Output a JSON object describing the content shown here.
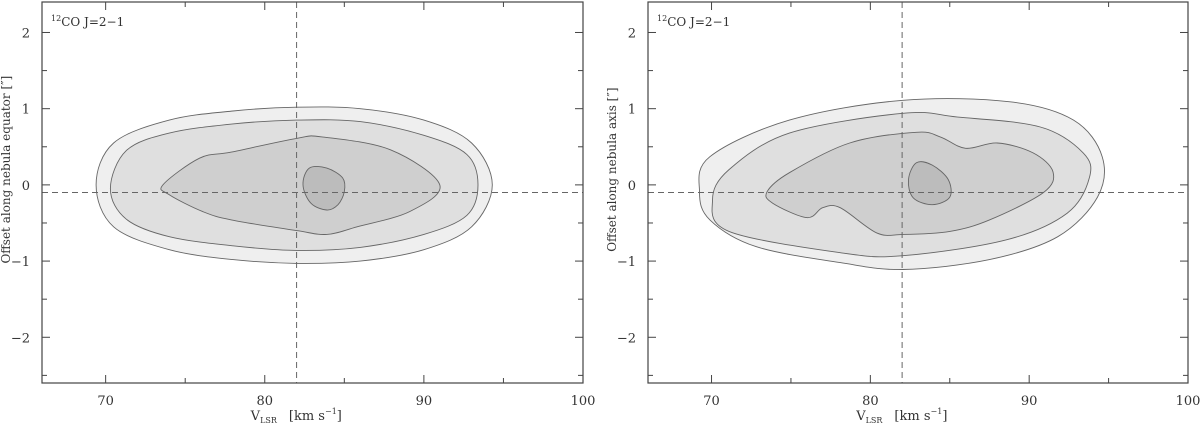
{
  "chart_data": [
    {
      "type": "contour",
      "annotation": {
        "sup": "12",
        "text": "CO J=2−1"
      },
      "xlabel": {
        "main": "V",
        "sub": "LSR",
        "unit": "[km s",
        "unit_sup": "−1",
        "unit_end": "]"
      },
      "ylabel": "Offset along nebula equator [″]",
      "xlim": [
        66,
        100
      ],
      "ylim": [
        -2.6,
        2.4
      ],
      "x_ticks": [
        70,
        80,
        90,
        100
      ],
      "x_tick_labels": [
        "70",
        "80",
        "90",
        "100"
      ],
      "x_minor_ticks": [
        75,
        85,
        95
      ],
      "y_ticks": [
        -2,
        -1,
        0,
        1,
        2
      ],
      "y_tick_labels": [
        "−2",
        "−1",
        "0",
        "1",
        "2"
      ],
      "y_minor_ticks": [
        -2.5,
        -1.5,
        -0.5,
        0.5,
        1.5
      ],
      "reference_lines": {
        "x": 82,
        "y": -0.1
      },
      "grid": false,
      "level_colors": [
        "#efefef",
        "#dfdfdf",
        "#cfcfcf",
        "#bcbcbc"
      ],
      "contours": [
        [
          [
            69.4,
            0
          ],
          [
            70.5,
            0.55
          ],
          [
            74,
            0.85
          ],
          [
            78,
            0.97
          ],
          [
            82,
            1.02
          ],
          [
            86,
            1.0
          ],
          [
            90,
            0.85
          ],
          [
            93,
            0.55
          ],
          [
            94.3,
            0
          ],
          [
            93,
            -0.55
          ],
          [
            90,
            -0.85
          ],
          [
            86,
            -1.0
          ],
          [
            82,
            -1.03
          ],
          [
            78,
            -0.98
          ],
          [
            74,
            -0.85
          ],
          [
            70.5,
            -0.55
          ]
        ],
        [
          [
            70.3,
            -0.05
          ],
          [
            71.3,
            0.45
          ],
          [
            74,
            0.68
          ],
          [
            78,
            0.8
          ],
          [
            82,
            0.85
          ],
          [
            86,
            0.83
          ],
          [
            90,
            0.65
          ],
          [
            92.7,
            0.4
          ],
          [
            93.4,
            0
          ],
          [
            92.7,
            -0.4
          ],
          [
            90,
            -0.65
          ],
          [
            86,
            -0.82
          ],
          [
            82,
            -0.86
          ],
          [
            78,
            -0.8
          ],
          [
            74,
            -0.68
          ],
          [
            71.3,
            -0.45
          ]
        ],
        [
          [
            73.6,
            0
          ],
          [
            75.9,
            0.35
          ],
          [
            77.9,
            0.43
          ],
          [
            82,
            0.61
          ],
          [
            83.6,
            0.63
          ],
          [
            87.9,
            0.46
          ],
          [
            91,
            0
          ],
          [
            89.1,
            -0.35
          ],
          [
            85.8,
            -0.55
          ],
          [
            83.9,
            -0.65
          ],
          [
            82,
            -0.6
          ],
          [
            77.9,
            -0.46
          ],
          [
            76.1,
            -0.35
          ],
          [
            74,
            -0.13
          ]
        ],
        [
          [
            82.8,
            0.22
          ],
          [
            83.9,
            0.22
          ],
          [
            84.9,
            0.09
          ],
          [
            85,
            -0.09
          ],
          [
            84.6,
            -0.26
          ],
          [
            83.9,
            -0.33
          ],
          [
            82.9,
            -0.24
          ],
          [
            82.4,
            0
          ]
        ]
      ]
    },
    {
      "type": "contour",
      "annotation": {
        "sup": "12",
        "text": "CO J=2−1"
      },
      "xlabel": {
        "main": "V",
        "sub": "LSR",
        "unit": "[km s",
        "unit_sup": "−1",
        "unit_end": "]"
      },
      "ylabel": "Offset along nebula axis [″]",
      "xlim": [
        66,
        100
      ],
      "ylim": [
        -2.6,
        2.4
      ],
      "x_ticks": [
        70,
        80,
        90,
        100
      ],
      "x_tick_labels": [
        "70",
        "80",
        "90",
        "100"
      ],
      "x_minor_ticks": [
        75,
        85,
        95
      ],
      "y_ticks": [
        -2,
        -1,
        0,
        1,
        2
      ],
      "y_tick_labels": [
        "−2",
        "−1",
        "0",
        "1",
        "2"
      ],
      "y_minor_ticks": [
        -2.5,
        -1.5,
        -0.5,
        0.5,
        1.5
      ],
      "reference_lines": {
        "x": 82,
        "y": -0.1
      },
      "grid": false,
      "level_colors": [
        "#efefef",
        "#dfdfdf",
        "#cfcfcf",
        "#bcbcbc"
      ],
      "contours": [
        [
          [
            69.24,
            -0.09
          ],
          [
            69.9,
            -0.46
          ],
          [
            72.8,
            -0.81
          ],
          [
            78.1,
            -1.02
          ],
          [
            82.05,
            -1.11
          ],
          [
            87.5,
            -0.98
          ],
          [
            91.8,
            -0.68
          ],
          [
            94.3,
            -0.16
          ],
          [
            94.6,
            0.37
          ],
          [
            92.8,
            0.85
          ],
          [
            88.8,
            1.09
          ],
          [
            82.05,
            1.11
          ],
          [
            74.9,
            0.85
          ],
          [
            69.9,
            0.37
          ]
        ],
        [
          [
            70.06,
            -0.2
          ],
          [
            71.1,
            -0.61
          ],
          [
            78.1,
            -0.89
          ],
          [
            82.05,
            -0.93
          ],
          [
            88.6,
            -0.72
          ],
          [
            92.4,
            -0.37
          ],
          [
            93.8,
            0.1
          ],
          [
            93.4,
            0.42
          ],
          [
            90.7,
            0.76
          ],
          [
            85.5,
            0.89
          ],
          [
            82.05,
            0.94
          ],
          [
            74.9,
            0.68
          ],
          [
            71.1,
            0.2
          ]
        ],
        [
          [
            73.5,
            -0.09
          ],
          [
            74.9,
            0.16
          ],
          [
            78.7,
            0.55
          ],
          [
            82.9,
            0.69
          ],
          [
            84.4,
            0.63
          ],
          [
            86,
            0.48
          ],
          [
            88,
            0.55
          ],
          [
            90.25,
            0.42
          ],
          [
            91.5,
            0.17
          ],
          [
            90.9,
            -0.1
          ],
          [
            87.5,
            -0.46
          ],
          [
            85,
            -0.61
          ],
          [
            82.05,
            -0.65
          ],
          [
            80.4,
            -0.63
          ],
          [
            78.1,
            -0.3
          ],
          [
            77,
            -0.3
          ],
          [
            76,
            -0.43
          ],
          [
            73.85,
            -0.24
          ]
        ],
        [
          [
            82.9,
            0.29
          ],
          [
            83.9,
            0.26
          ],
          [
            84.9,
            0.07
          ],
          [
            85,
            -0.16
          ],
          [
            83.9,
            -0.26
          ],
          [
            82.7,
            -0.17
          ],
          [
            82.4,
            0.07
          ]
        ]
      ]
    }
  ]
}
